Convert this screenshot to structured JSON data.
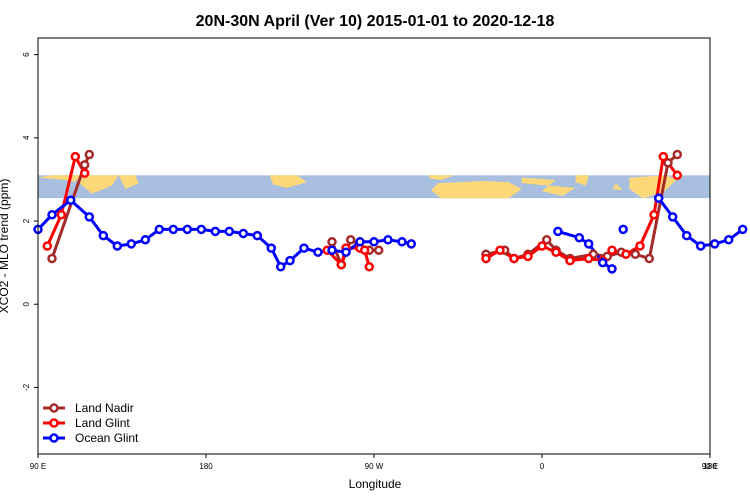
{
  "chart_data": {
    "type": "line",
    "title": "20N-30N April (Ver 10)   2015-01-01 to 2020-12-18",
    "xlabel": "Longitude",
    "ylabel": "XCO2 - MLO trend (ppm)",
    "xlim": [
      90,
      450
    ],
    "ylim": [
      -3.6,
      6.4
    ],
    "y_ticks": [
      {
        "value": -2,
        "label": "-2"
      },
      {
        "value": 0,
        "label": "0"
      },
      {
        "value": 2,
        "label": "2"
      },
      {
        "value": 4,
        "label": "4"
      },
      {
        "value": 6,
        "label": "6"
      }
    ],
    "x_ticks": [
      {
        "value": 90,
        "label": "90 E"
      },
      {
        "value": 180,
        "label": "180"
      },
      {
        "value": 270,
        "label": "90 W"
      },
      {
        "value": 360,
        "label": "0"
      },
      {
        "value": 450,
        "label": "90 E"
      },
      {
        "value": 540,
        "label": "180"
      }
    ],
    "map_band": {
      "y_low": 2.55,
      "y_high": 3.1,
      "ocean_color": "#a8bfe0",
      "land_color": "#fdd878"
    },
    "legend_position": "bottom-left",
    "series": [
      {
        "name": "Land Nadir",
        "color": "#a52a2a",
        "segments": [
          [
            [
              97.5,
              1.1
            ],
            [
              115,
              3.35
            ],
            [
              117.5,
              3.6
            ]
          ],
          [
            [
              247.5,
              1.5
            ],
            [
              252.5,
              0.95
            ],
            [
              257.5,
              1.55
            ],
            [
              267.5,
              1.3
            ],
            [
              272.5,
              1.3
            ]
          ],
          [
            [
              330,
              1.2
            ],
            [
              340,
              1.3
            ],
            [
              345,
              1.1
            ],
            [
              352.5,
              1.2
            ],
            [
              362.5,
              1.55
            ],
            [
              367.5,
              1.3
            ],
            [
              375,
              1.1
            ],
            [
              387.5,
              1.2
            ],
            [
              395,
              1.15
            ],
            [
              402.5,
              1.25
            ],
            [
              410,
              1.2
            ],
            [
              417.5,
              1.1
            ],
            [
              427.5,
              3.4
            ],
            [
              432.5,
              3.6
            ]
          ]
        ]
      },
      {
        "name": "Land Glint",
        "color": "#ff0000",
        "segments": [
          [
            [
              95,
              1.4
            ],
            [
              102.5,
              2.15
            ],
            [
              110,
              3.55
            ],
            [
              115,
              3.15
            ]
          ],
          [
            [
              245,
              1.3
            ],
            [
              252.5,
              0.95
            ],
            [
              255,
              1.35
            ],
            [
              262.5,
              1.35
            ],
            [
              265,
              1.3
            ],
            [
              267.5,
              0.9
            ]
          ],
          [
            [
              330,
              1.1
            ],
            [
              337.5,
              1.3
            ],
            [
              345,
              1.1
            ],
            [
              352.5,
              1.15
            ],
            [
              360,
              1.4
            ],
            [
              367.5,
              1.25
            ],
            [
              375,
              1.05
            ],
            [
              385,
              1.1
            ],
            [
              392.5,
              1.05
            ],
            [
              397.5,
              1.3
            ],
            [
              405,
              1.2
            ],
            [
              412.5,
              1.4
            ],
            [
              420,
              2.15
            ],
            [
              425,
              3.55
            ],
            [
              432.5,
              3.1
            ]
          ]
        ]
      },
      {
        "name": "Ocean Glint",
        "color": "#0000ff",
        "segments": [
          [
            [
              90,
              1.8
            ],
            [
              97.5,
              2.15
            ],
            [
              107.5,
              2.5
            ],
            [
              117.5,
              2.1
            ],
            [
              125,
              1.65
            ],
            [
              132.5,
              1.4
            ],
            [
              140,
              1.45
            ],
            [
              147.5,
              1.55
            ],
            [
              155,
              1.8
            ],
            [
              162.5,
              1.8
            ],
            [
              170,
              1.8
            ],
            [
              177.5,
              1.8
            ],
            [
              185,
              1.75
            ],
            [
              192.5,
              1.75
            ],
            [
              200,
              1.7
            ],
            [
              207.5,
              1.65
            ],
            [
              215,
              1.35
            ],
            [
              220,
              0.9
            ],
            [
              225,
              1.05
            ],
            [
              232.5,
              1.35
            ],
            [
              240,
              1.25
            ],
            [
              247.5,
              1.3
            ],
            [
              255,
              1.25
            ],
            [
              262.5,
              1.5
            ],
            [
              270,
              1.5
            ],
            [
              277.5,
              1.55
            ],
            [
              285,
              1.5
            ],
            [
              290,
              1.45
            ]
          ],
          [
            [
              368.5,
              1.75
            ],
            [
              380,
              1.6
            ],
            [
              385,
              1.45
            ],
            [
              392.5,
              1.0
            ],
            [
              397.5,
              0.85
            ]
          ],
          [
            [
              403.5,
              1.8
            ]
          ],
          [
            [
              422.5,
              2.55
            ],
            [
              430,
              2.1
            ],
            [
              437.5,
              1.65
            ],
            [
              445,
              1.4
            ],
            [
              452.5,
              1.45
            ],
            [
              460,
              1.55
            ],
            [
              467.5,
              1.8
            ]
          ]
        ]
      }
    ]
  }
}
